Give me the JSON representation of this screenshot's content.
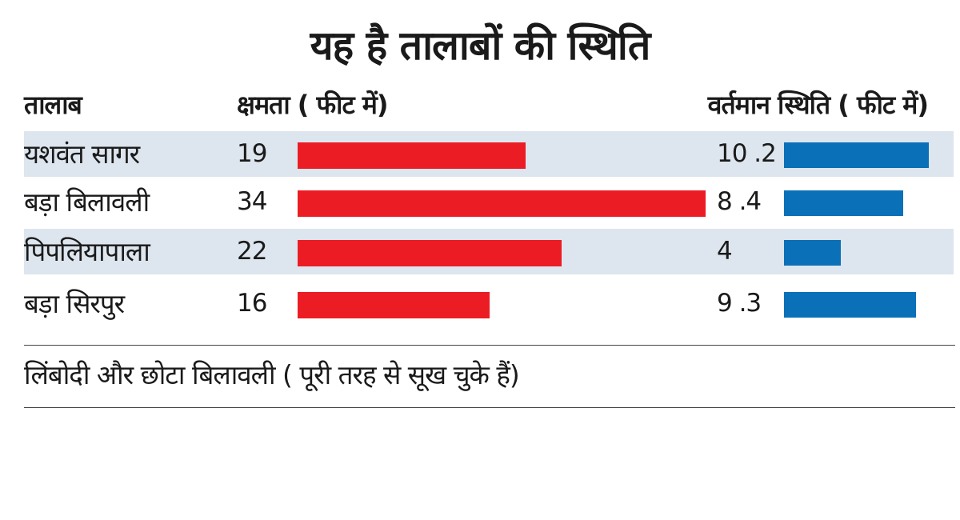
{
  "chart_data": {
    "type": "bar",
    "title": "यह है तालाबों की स्थिति",
    "columns": {
      "name": "तालाब",
      "capacity": "क्षमता ( फीट में)",
      "current": "वर्तमान स्थिति ( फीट में)"
    },
    "categories": [
      "यशवंत सागर",
      "बड़ा बिलावली",
      "पिपलियापाला",
      "बड़ा सिरपुर"
    ],
    "series": [
      {
        "name": "क्षमता ( फीट में)",
        "values": [
          19,
          34,
          22,
          16
        ],
        "labels": [
          "19",
          "34",
          "22",
          "16"
        ],
        "color": "#ec1c24"
      },
      {
        "name": "वर्तमान स्थिति ( फीट में)",
        "values": [
          10.2,
          8.4,
          4,
          9.3
        ],
        "labels": [
          "10 .2",
          "8 .4",
          "4",
          "9 .3"
        ],
        "color": "#0a70b8"
      }
    ],
    "footnote": "लिंबोदी और छोटा बिलावली ( पूरी तरह से सूख चुके हैं)"
  }
}
